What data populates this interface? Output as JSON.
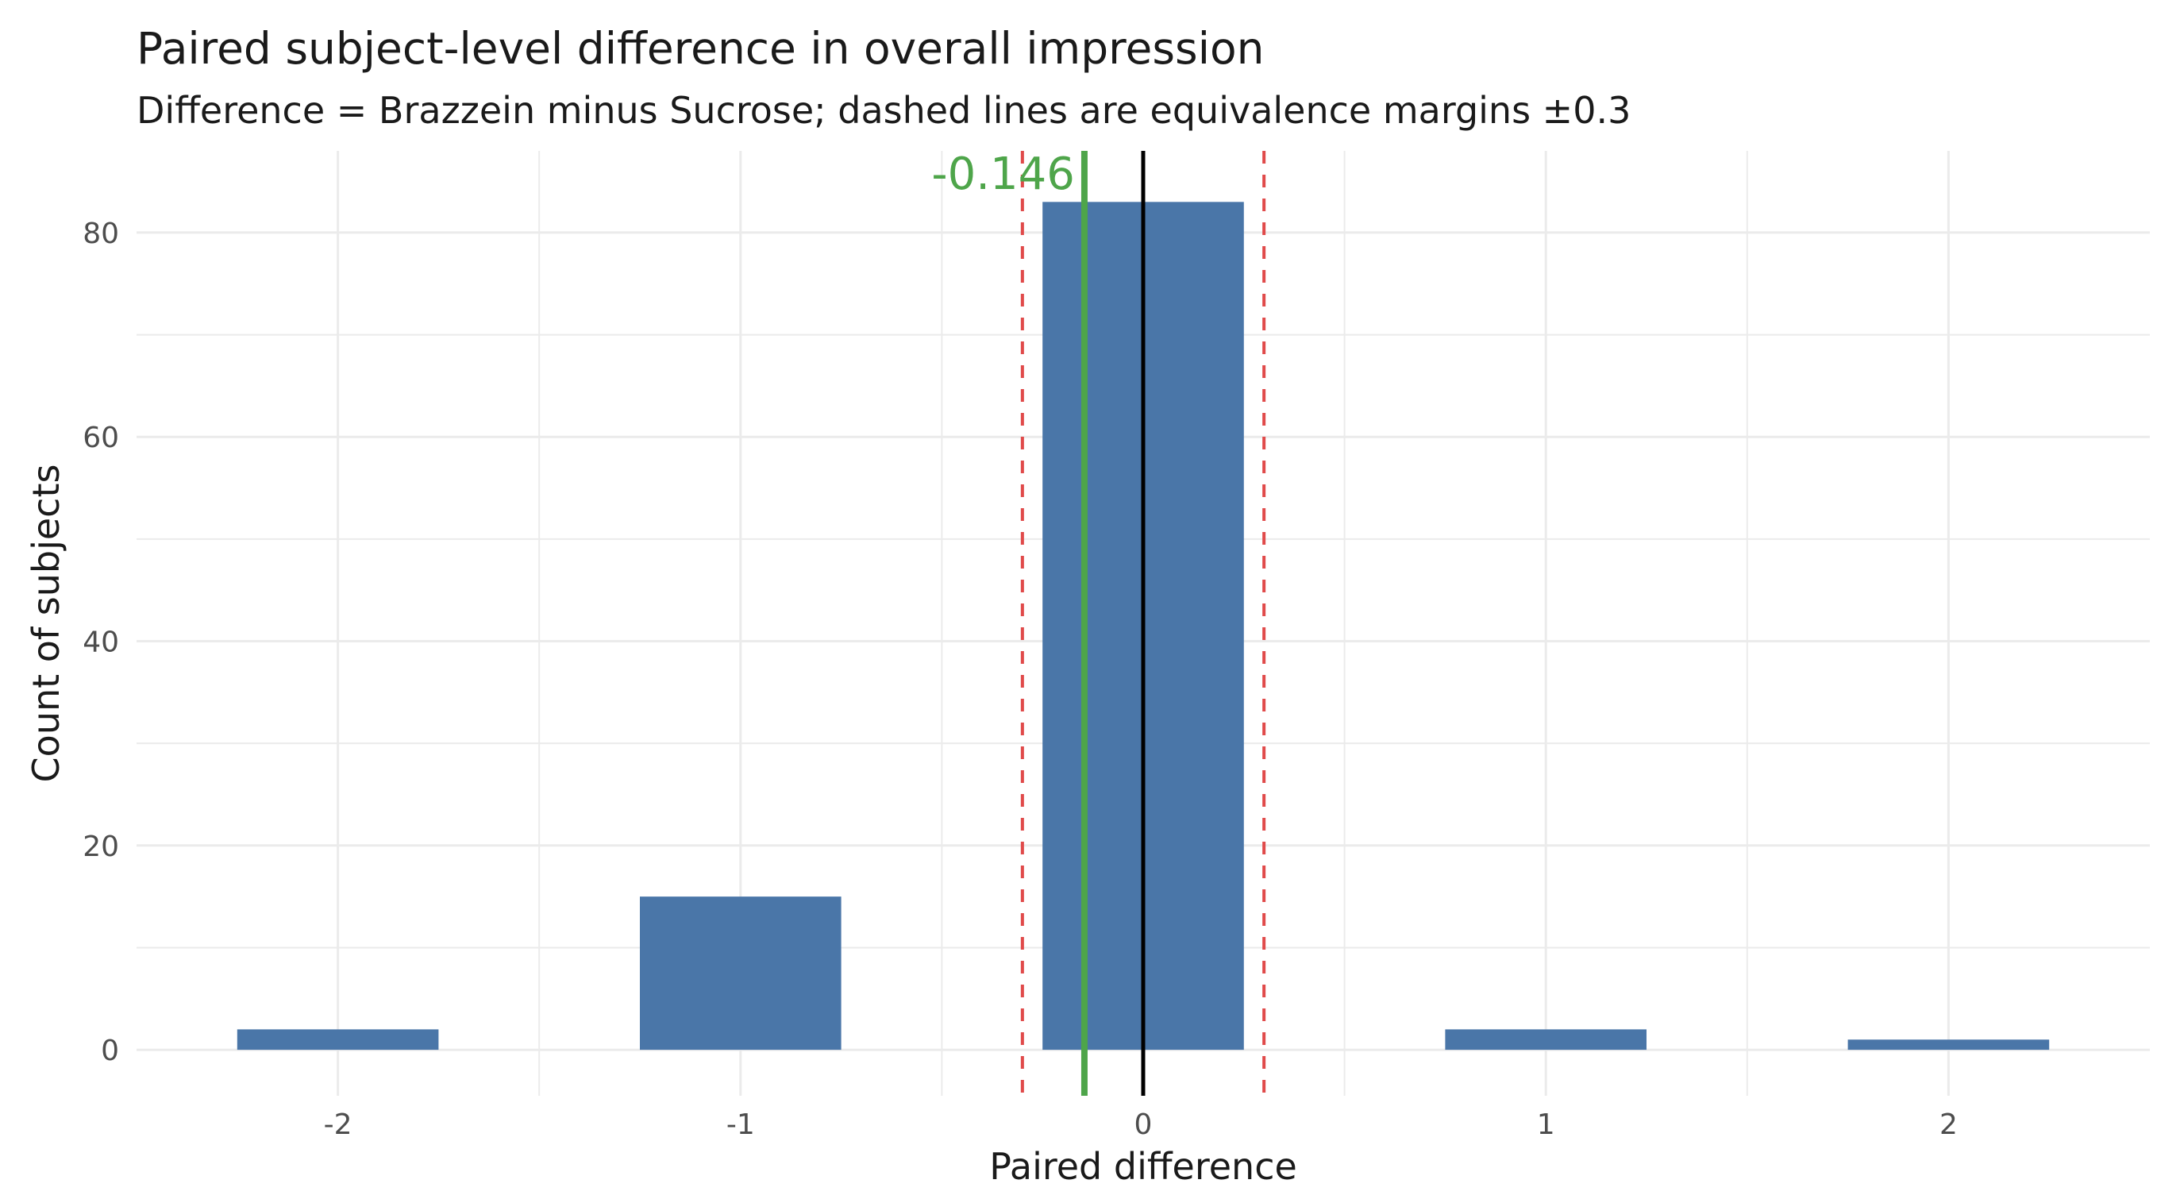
{
  "chart_data": {
    "type": "bar",
    "title": "Paired subject-level difference in overall impression",
    "subtitle": "Difference = Brazzein minus Sucrose; dashed lines are equivalence margins ±0.3",
    "xlabel": "Paired difference",
    "ylabel": "Count of subjects",
    "x": [
      -2,
      -1,
      0,
      1,
      2
    ],
    "values": [
      2,
      15,
      83,
      2,
      1
    ],
    "bar_width": 0.5,
    "xlim": [
      -2.5,
      2.5
    ],
    "ylim": [
      -4.5,
      88
    ],
    "x_ticks": [
      -2,
      -1,
      0,
      1,
      2
    ],
    "x_tick_labels": [
      "-2",
      "-1",
      "0",
      "1",
      "2"
    ],
    "y_ticks": [
      0,
      20,
      40,
      60,
      80
    ],
    "y_tick_labels": [
      "0",
      "20",
      "40",
      "60",
      "80"
    ],
    "grid": true,
    "legend": "none",
    "equivalence_margins": [
      -0.3,
      0.3
    ],
    "zero_line": 0,
    "mean_difference": -0.146,
    "mean_label": "-0.146",
    "colors": {
      "bar": "#4a76a8",
      "margin_line": "#e04a4a",
      "zero_line": "#000000",
      "mean_line": "#4ea54a",
      "grid": "#ebebeb"
    }
  }
}
